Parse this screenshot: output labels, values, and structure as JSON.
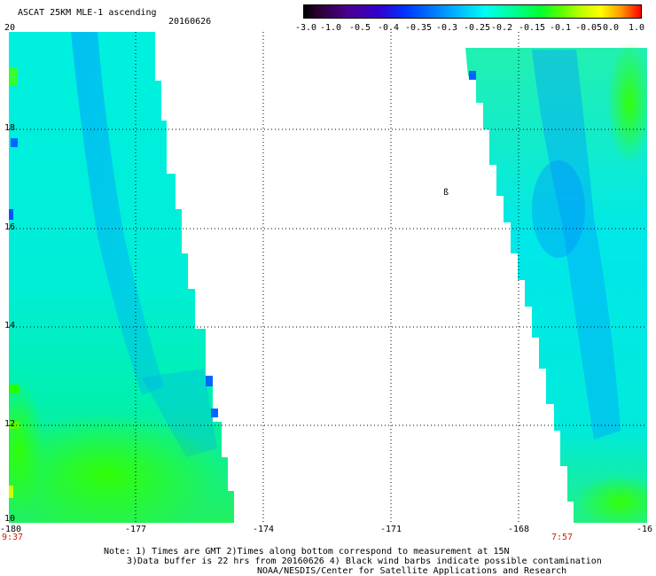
{
  "header": {
    "title": "ASCAT 25KM MLE-1 ascending",
    "date": "20160626"
  },
  "colorbar": {
    "ticks": [
      "-3.0",
      "-1.0",
      "-0.5",
      "-0.4",
      "-0.35",
      "-0.3",
      "-0.25",
      "-0.2",
      "-0.15",
      "-0.1",
      "-0.05",
      "0.0",
      "1.0"
    ],
    "colors": [
      "#000000",
      "#4b0090",
      "#0033ff",
      "#00bbff",
      "#00ffee",
      "#00ff99",
      "#00ff33",
      "#bbff00",
      "#ffff00",
      "#ff9900",
      "#ff0000"
    ]
  },
  "axes": {
    "y_labels": [
      "20",
      "18",
      "16",
      "14",
      "12",
      "10"
    ],
    "x_labels": [
      "-180",
      "-177",
      "-174",
      "-171",
      "-168",
      "-16"
    ],
    "x_range": [
      -180,
      -165
    ],
    "y_range": [
      10,
      20
    ],
    "grid": "dotted"
  },
  "passes": {
    "left_time": "9:37",
    "right_time": "7:57"
  },
  "island_label": "ß",
  "notes": {
    "line1": "Note: 1) Times are GMT 2)Times along bottom correspond to measurement at 15N",
    "line2": "3)Data buffer is 22 hrs from 20160626 4) Black wind barbs indicate possible contamination",
    "line3": "NOAA/NESDIS/Center for Satellite Applications and Research"
  }
}
